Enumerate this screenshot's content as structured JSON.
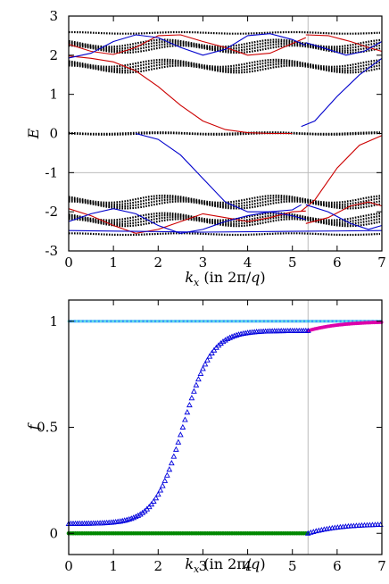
{
  "chart_data": [
    {
      "type": "line",
      "ylabel": "E",
      "xlabel": "k_x (in 2π/q)",
      "xlim": [
        0,
        7
      ],
      "ylim": [
        -3,
        3
      ],
      "xticks": [
        "0",
        "1",
        "2",
        "3",
        "4",
        "5",
        "6",
        "7"
      ],
      "yticks": [
        "3",
        "2",
        "1",
        "0",
        "-1",
        "-2",
        "-3"
      ],
      "vline_x": 5.35,
      "hline_y": -1,
      "colors": {
        "edge_a": "#cc0000",
        "edge_b": "#0000cc",
        "bulk": "#000000",
        "guide": "#bbbbbb"
      },
      "series": [
        {
          "color": "#cc0000",
          "points": [
            [
              0,
              1.98
            ],
            [
              0.5,
              1.92
            ],
            [
              1.0,
              1.83
            ],
            [
              1.5,
              1.6
            ],
            [
              2.0,
              1.2
            ],
            [
              2.5,
              0.72
            ],
            [
              3.0,
              0.32
            ],
            [
              3.5,
              0.1
            ],
            [
              4.0,
              0.02
            ],
            [
              4.5,
              0.0
            ],
            [
              5.0,
              0.0
            ]
          ]
        },
        {
          "color": "#0000cc",
          "points": [
            [
              1.5,
              0.0
            ],
            [
              2.0,
              -0.15
            ],
            [
              2.5,
              -0.55
            ],
            [
              3.0,
              -1.15
            ],
            [
              3.5,
              -1.75
            ],
            [
              4.0,
              -2.0
            ],
            [
              4.5,
              -2.0
            ],
            [
              5.0,
              -1.95
            ],
            [
              5.2,
              -1.82
            ]
          ]
        },
        {
          "color": "#0000cc",
          "points": [
            [
              5.2,
              0.18
            ],
            [
              5.5,
              0.32
            ],
            [
              6.0,
              0.95
            ],
            [
              6.5,
              1.5
            ],
            [
              7.0,
              1.92
            ]
          ]
        },
        {
          "color": "#cc0000",
          "points": [
            [
              5.2,
              -1.98
            ],
            [
              5.5,
              -1.7
            ],
            [
              6.0,
              -0.88
            ],
            [
              6.5,
              -0.3
            ],
            [
              7.0,
              -0.05
            ]
          ]
        },
        {
          "color": "#cc0000",
          "points": [
            [
              0,
              2.28
            ],
            [
              0.5,
              2.1
            ],
            [
              1.0,
              2.02
            ],
            [
              1.5,
              2.2
            ],
            [
              2.0,
              2.5
            ],
            [
              2.5,
              2.52
            ],
            [
              3.0,
              2.35
            ],
            [
              3.5,
              2.2
            ],
            [
              4.0,
              2.0
            ],
            [
              4.5,
              2.05
            ],
            [
              5.0,
              2.3
            ],
            [
              5.3,
              2.45
            ]
          ]
        },
        {
          "color": "#cc0000",
          "points": [
            [
              5.3,
              2.52
            ],
            [
              5.8,
              2.5
            ],
            [
              6.3,
              2.35
            ],
            [
              6.7,
              2.2
            ],
            [
              7.0,
              2.1
            ]
          ]
        },
        {
          "color": "#0000cc",
          "points": [
            [
              0,
              1.93
            ],
            [
              0.5,
              2.05
            ],
            [
              1.0,
              2.35
            ],
            [
              1.5,
              2.52
            ],
            [
              2.0,
              2.45
            ],
            [
              2.5,
              2.2
            ],
            [
              3.0,
              2.0
            ],
            [
              3.5,
              2.15
            ],
            [
              4.0,
              2.5
            ],
            [
              4.5,
              2.55
            ],
            [
              5.0,
              2.4
            ],
            [
              5.3,
              2.25
            ]
          ]
        },
        {
          "color": "#0000cc",
          "points": [
            [
              5.3,
              2.32
            ],
            [
              5.8,
              2.15
            ],
            [
              6.2,
              2.0
            ],
            [
              6.6,
              2.1
            ],
            [
              7.0,
              2.35
            ]
          ]
        },
        {
          "color": "#cc0000",
          "points": [
            [
              0,
              -1.92
            ],
            [
              0.5,
              -2.1
            ],
            [
              1.0,
              -2.35
            ],
            [
              1.5,
              -2.55
            ],
            [
              2.0,
              -2.45
            ],
            [
              2.5,
              -2.25
            ],
            [
              3.0,
              -2.05
            ],
            [
              3.5,
              -2.15
            ],
            [
              4.0,
              -2.25
            ],
            [
              4.5,
              -2.15
            ],
            [
              5.0,
              -2.0
            ],
            [
              5.3,
              -1.98
            ]
          ]
        },
        {
          "color": "#cc0000",
          "points": [
            [
              5.3,
              -2.3
            ],
            [
              5.8,
              -2.15
            ],
            [
              6.3,
              -1.85
            ],
            [
              6.7,
              -1.75
            ],
            [
              7.0,
              -1.85
            ]
          ]
        },
        {
          "color": "#0000cc",
          "points": [
            [
              0,
              -2.25
            ],
            [
              0.5,
              -2.05
            ],
            [
              1.0,
              -1.92
            ],
            [
              1.5,
              -2.05
            ],
            [
              2.0,
              -2.35
            ],
            [
              2.5,
              -2.55
            ],
            [
              3.0,
              -2.45
            ],
            [
              3.5,
              -2.25
            ],
            [
              4.0,
              -2.1
            ],
            [
              4.5,
              -2.0
            ],
            [
              5.0,
              -2.1
            ],
            [
              5.3,
              -2.2
            ]
          ]
        },
        {
          "color": "#0000cc",
          "points": [
            [
              5.3,
              -1.82
            ],
            [
              5.8,
              -2.0
            ],
            [
              6.3,
              -2.3
            ],
            [
              6.7,
              -2.45
            ],
            [
              7.0,
              -2.35
            ]
          ]
        },
        {
          "color": "#0000cc",
          "points": [
            [
              0,
              -2.48
            ],
            [
              1.5,
              -2.5
            ],
            [
              3.0,
              -2.52
            ],
            [
              5.0,
              -2.5
            ],
            [
              7.0,
              -2.48
            ]
          ]
        }
      ],
      "bulk_bands": [
        {
          "mean": 2.57,
          "amp": 0.02,
          "phase": 0.0,
          "count": 1,
          "spacing": 0
        },
        {
          "mean": 2.23,
          "amp": 0.09,
          "phase": 0.0,
          "count": 4,
          "spacing": 0.05
        },
        {
          "mean": 1.72,
          "amp": 0.09,
          "phase": 0.0,
          "count": 4,
          "spacing": 0.05
        },
        {
          "mean": 0.0,
          "amp": 0.02,
          "phase": 1.0,
          "count": 2,
          "spacing": 0.02
        },
        {
          "mean": -1.75,
          "amp": 0.09,
          "phase": 0.0,
          "count": 4,
          "spacing": 0.05
        },
        {
          "mean": -2.2,
          "amp": 0.09,
          "phase": 0.0,
          "count": 4,
          "spacing": 0.05
        },
        {
          "mean": -2.57,
          "amp": 0.02,
          "phase": 0.0,
          "count": 1,
          "spacing": 0
        }
      ]
    },
    {
      "type": "scatter",
      "ylabel": "f",
      "xlabel": "k_x (in 2π/q)",
      "xlim": [
        0,
        7
      ],
      "ylim": [
        -0.1,
        1.1
      ],
      "xticks": [
        "0",
        "1",
        "2",
        "3",
        "4",
        "5",
        "6",
        "7"
      ],
      "yticks": [
        "1",
        "0.5",
        "0"
      ],
      "ytick_values": [
        1,
        0.5,
        0
      ],
      "vline_x": 5.35,
      "colors": {
        "triangle": "#0000dd",
        "upper_line": "#3399ff",
        "upper_cyan": "#66e0e0",
        "magenta": "#dd00aa",
        "green": "#008800",
        "guide": "#bbbbbb"
      },
      "series": [
        {
          "color": "#3399ff",
          "points": [
            [
              0,
              1.0
            ],
            [
              7,
              1.0
            ]
          ]
        },
        {
          "color": "#008800",
          "points": [
            [
              0,
              0.0
            ],
            [
              7,
              0.0
            ]
          ]
        },
        {
          "color": "#dd00aa",
          "points": [
            [
              5.35,
              0.955
            ],
            [
              5.8,
              0.97
            ],
            [
              6.3,
              0.99
            ],
            [
              7.0,
              1.0
            ]
          ]
        },
        {
          "color": "#0000dd",
          "points": [
            [
              5.35,
              0.0
            ],
            [
              5.8,
              0.018
            ],
            [
              6.3,
              0.035
            ],
            [
              7.0,
              0.045
            ]
          ]
        }
      ],
      "triangle_logistic": {
        "low": 0.045,
        "high": 0.955,
        "x0": 2.55,
        "scale": 0.32,
        "x_end": 5.35,
        "step": 0.05
      }
    }
  ]
}
